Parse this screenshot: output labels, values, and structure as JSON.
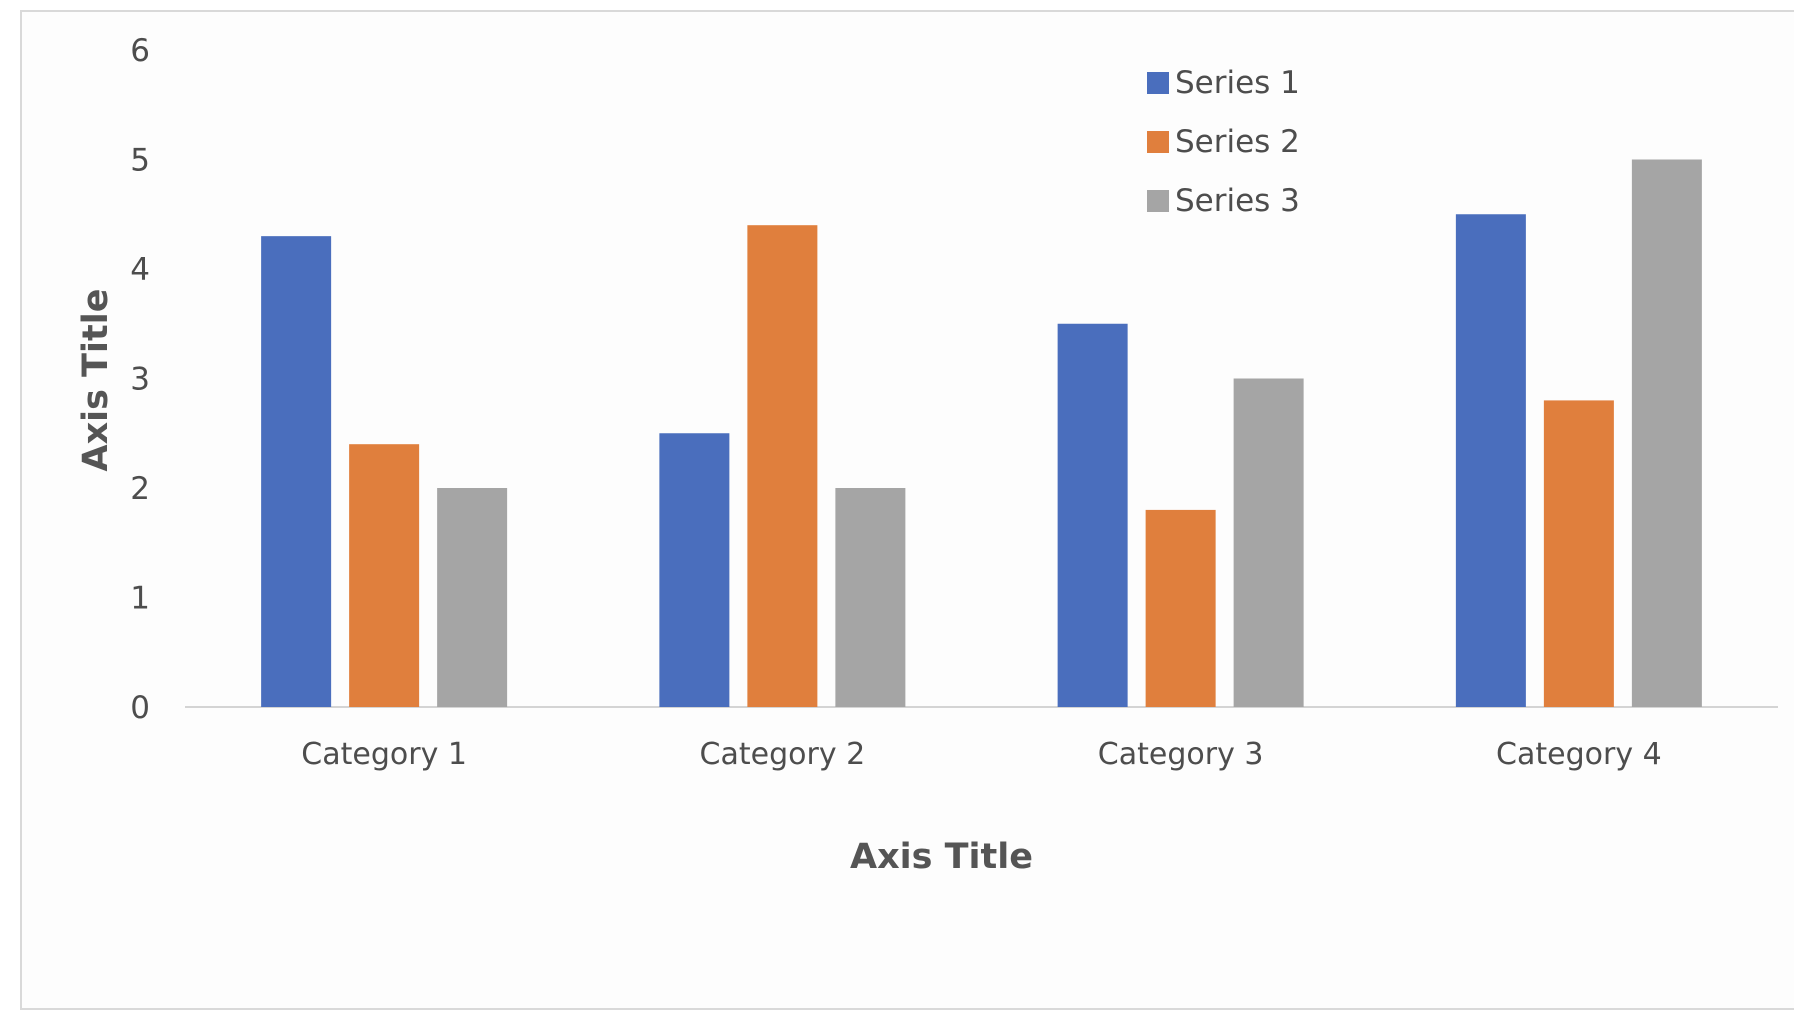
{
  "chart_data": {
    "type": "bar",
    "categories": [
      "Category 1",
      "Category 2",
      "Category 3",
      "Category 4"
    ],
    "series": [
      {
        "name": "Series 1",
        "values": [
          4.3,
          2.5,
          3.5,
          4.5
        ],
        "color": "#4a6ebd"
      },
      {
        "name": "Series 2",
        "values": [
          2.4,
          4.4,
          1.8,
          2.8
        ],
        "color": "#e07f3d"
      },
      {
        "name": "Series 3",
        "values": [
          2.0,
          2.0,
          3.0,
          5.0
        ],
        "color": "#a5a5a5"
      }
    ],
    "title": "",
    "xlabel": "Axis Title",
    "ylabel": "Axis Title",
    "ylim": [
      0,
      6
    ],
    "yticks": [
      "0",
      "1",
      "2",
      "3",
      "4",
      "5",
      "6"
    ],
    "grid": false,
    "legend_position": "top-right"
  }
}
